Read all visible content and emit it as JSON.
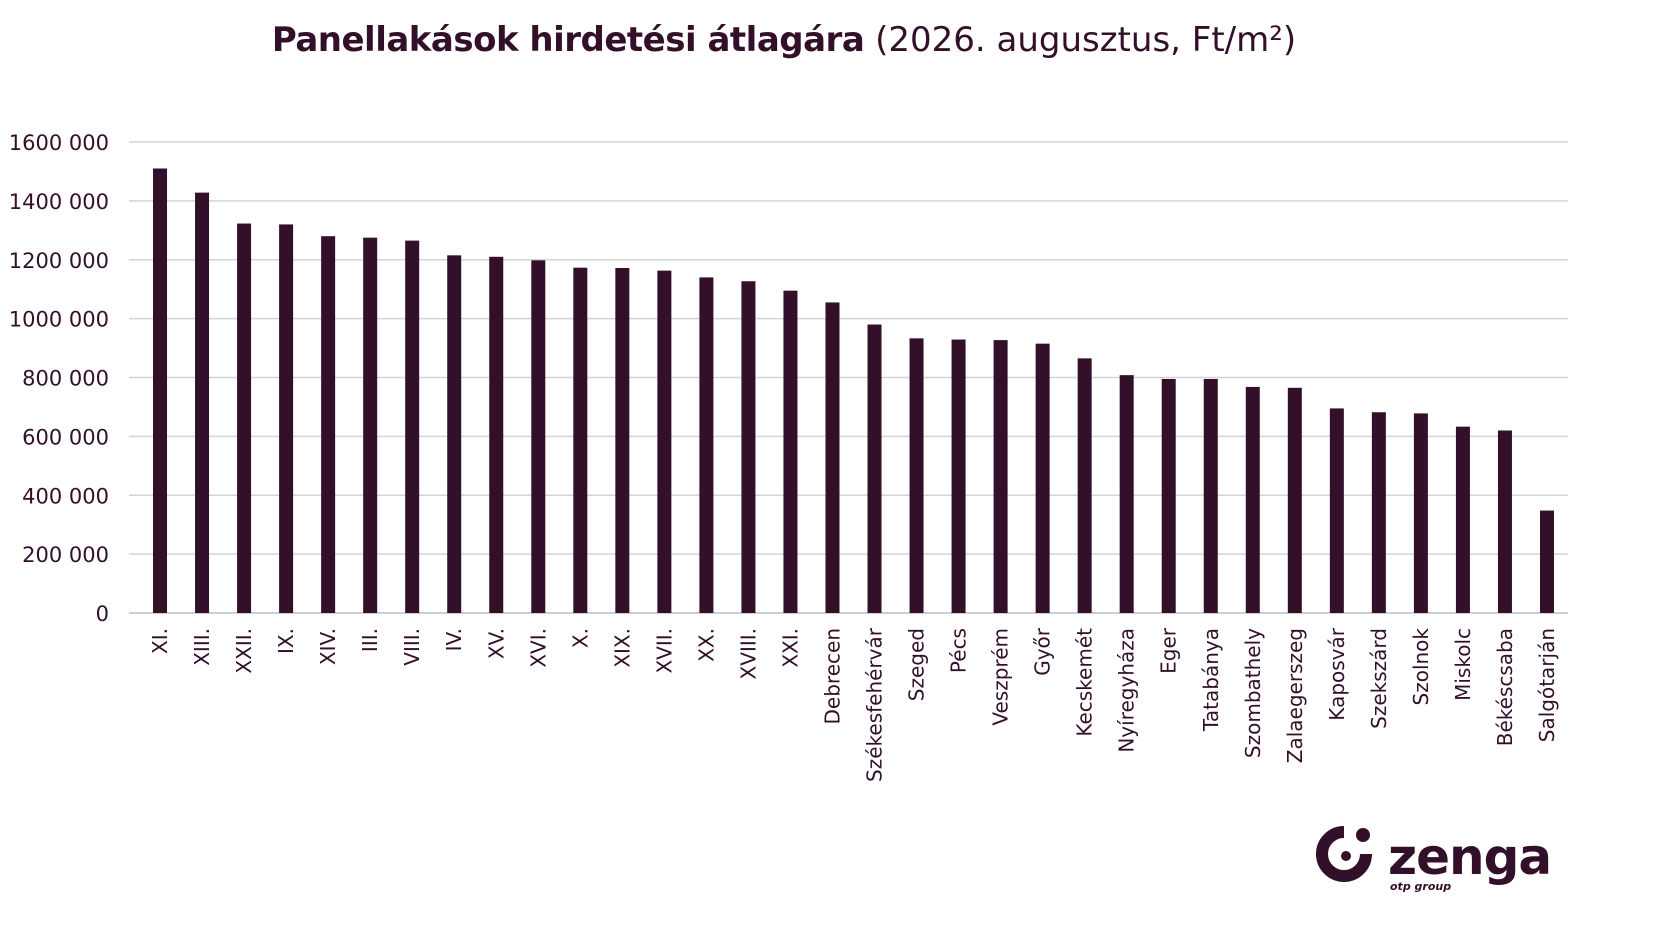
{
  "title": {
    "bold": "Panellakások hirdetési átlagára",
    "rest": "(2026. augusztus, Ft/m²)"
  },
  "logo": {
    "name": "zenga",
    "sub": "otp group"
  },
  "colors": {
    "bar": "#33102a",
    "grid": "#d4d4d4",
    "text": "#33102a"
  },
  "chart_data": {
    "type": "bar",
    "title": "Panellakások hirdetési átlagára (2026. augusztus, Ft/m²)",
    "categories": [
      "XI.",
      "XIII.",
      "XXII.",
      "IX.",
      "XIV.",
      "III.",
      "VIII.",
      "IV.",
      "XV.",
      "XVI.",
      "X.",
      "XIX.",
      "XVII.",
      "XX.",
      "XVIII.",
      "XXI.",
      "Debrecen",
      "Székesfehérvár",
      "Szeged",
      "Pécs",
      "Veszprém",
      "Győr",
      "Kecskemét",
      "Nyíregyháza",
      "Eger",
      "Tatabánya",
      "Szombathely",
      "Zalaegerszeg",
      "Kaposvár",
      "Szekszárd",
      "Szolnok",
      "Miskolc",
      "Békéscsaba",
      "Salgótarján"
    ],
    "values": [
      1510000,
      1428000,
      1323000,
      1320000,
      1280000,
      1275000,
      1265000,
      1215000,
      1210000,
      1198000,
      1173000,
      1172000,
      1163000,
      1140000,
      1127000,
      1095000,
      1055000,
      980000,
      933000,
      929000,
      927000,
      915000,
      865000,
      808000,
      795000,
      795000,
      768000,
      765000,
      695000,
      682000,
      678000,
      633000,
      620000,
      348000
    ],
    "ylim": [
      0,
      1600000
    ],
    "yticks": [
      0,
      200000,
      400000,
      600000,
      800000,
      1000000,
      1200000,
      1400000,
      1600000
    ],
    "ytick_labels": [
      "0",
      "200 000",
      "400 000",
      "600 000",
      "800 000",
      "1000 000",
      "1200 000",
      "1400 000",
      "1600 000"
    ],
    "grid": true,
    "legend": "none"
  }
}
